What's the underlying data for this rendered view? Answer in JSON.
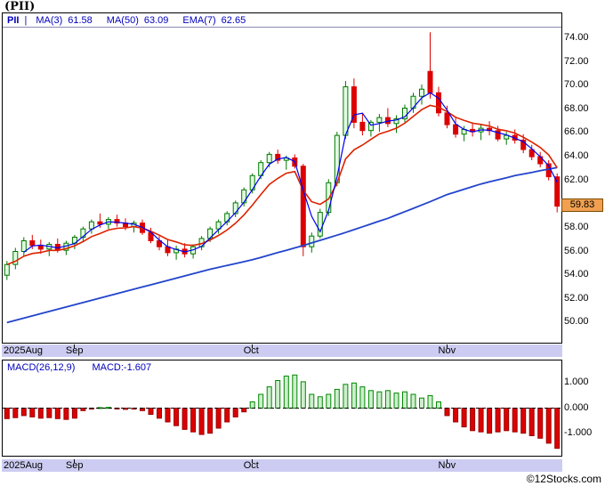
{
  "header": {
    "title": "(PII)"
  },
  "legend": {
    "symbol": "PII",
    "separator": "|",
    "items": [
      {
        "label": "MA(3)",
        "value": "61.58"
      },
      {
        "label": "MA(50)",
        "value": "63.09"
      },
      {
        "label": "EMA(7)",
        "value": "62.65"
      }
    ]
  },
  "macd_legend": {
    "params": "MACD(26,12,9)",
    "value": "MACD:-1.607"
  },
  "footer": {
    "copyright": "©12Stocks.com"
  },
  "colors": {
    "legend_text": "#0000bb",
    "axis_text": "#000000",
    "strip_bg": "#ccccf2",
    "tag_bg": "#f0a050",
    "tag_border": "#7a4a00"
  },
  "chart_data": [
    {
      "type": "candlestick",
      "symbol": "PII",
      "ylim": [
        48.3,
        76.1
      ],
      "y_ticks": [
        "74.00",
        "72.00",
        "70.00",
        "68.00",
        "66.00",
        "64.00",
        "62.00",
        "58.00",
        "56.00",
        "54.00",
        "52.00",
        "50.00"
      ],
      "x_ticks": [
        {
          "label": "2025Aug",
          "index": 0
        },
        {
          "label": "Sep",
          "index": 8
        },
        {
          "label": "Oct",
          "index": 29
        },
        {
          "label": "Nov",
          "index": 52
        }
      ],
      "last_price": 59.83,
      "last_price_label": "59.83",
      "colors": {
        "up": "#007700",
        "up_fill": "#e2ffe2",
        "down": "#dd0000",
        "down_fill": "#dd0000",
        "ma3": "#0000ee",
        "ma50": "#2244cc",
        "ema7": "#dd2200"
      },
      "ma50_points": [
        [
          0,
          50.0
        ],
        [
          8,
          51.5
        ],
        [
          16,
          53.0
        ],
        [
          24,
          54.5
        ],
        [
          29,
          55.3
        ],
        [
          35,
          56.5
        ],
        [
          40,
          57.6
        ],
        [
          45,
          58.8
        ],
        [
          50,
          60.2
        ],
        [
          52,
          60.8
        ],
        [
          56,
          61.7
        ],
        [
          60,
          62.4
        ],
        [
          65,
          63.09
        ]
      ],
      "candles": [
        [
          54.0,
          55.2,
          53.6,
          54.9
        ],
        [
          54.9,
          56.3,
          54.5,
          56.0
        ],
        [
          56.0,
          57.2,
          55.6,
          56.9
        ],
        [
          56.9,
          57.4,
          56.2,
          56.5
        ],
        [
          56.5,
          57.0,
          55.8,
          56.2
        ],
        [
          56.2,
          56.8,
          55.6,
          56.6
        ],
        [
          56.6,
          57.1,
          55.9,
          56.1
        ],
        [
          56.1,
          56.9,
          55.7,
          56.7
        ],
        [
          56.7,
          57.4,
          56.2,
          57.2
        ],
        [
          57.2,
          58.1,
          56.9,
          57.9
        ],
        [
          57.9,
          58.7,
          57.5,
          58.5
        ],
        [
          58.5,
          59.2,
          58.0,
          58.3
        ],
        [
          58.3,
          58.9,
          57.9,
          58.7
        ],
        [
          58.7,
          59.1,
          58.1,
          58.4
        ],
        [
          58.4,
          58.8,
          57.8,
          58.1
        ],
        [
          58.1,
          58.6,
          57.6,
          58.4
        ],
        [
          58.4,
          58.7,
          57.4,
          57.6
        ],
        [
          57.6,
          58.0,
          56.7,
          56.9
        ],
        [
          56.9,
          57.3,
          56.1,
          56.4
        ],
        [
          56.4,
          57.0,
          55.6,
          55.9
        ],
        [
          55.9,
          56.5,
          55.3,
          56.2
        ],
        [
          56.2,
          56.7,
          55.5,
          55.8
        ],
        [
          55.8,
          56.6,
          55.4,
          56.4
        ],
        [
          56.4,
          57.3,
          56.1,
          57.1
        ],
        [
          57.1,
          58.1,
          56.8,
          57.9
        ],
        [
          57.9,
          58.7,
          57.5,
          58.5
        ],
        [
          58.5,
          59.4,
          58.2,
          59.2
        ],
        [
          59.2,
          60.3,
          58.9,
          60.1
        ],
        [
          60.1,
          61.4,
          59.8,
          61.2
        ],
        [
          61.2,
          62.6,
          60.9,
          62.4
        ],
        [
          62.4,
          63.7,
          62.1,
          63.5
        ],
        [
          63.5,
          64.4,
          63.1,
          64.2
        ],
        [
          64.2,
          64.6,
          63.4,
          63.7
        ],
        [
          63.7,
          64.1,
          62.9,
          63.9
        ],
        [
          63.9,
          64.2,
          63.0,
          63.2
        ],
        [
          63.2,
          63.4,
          55.6,
          56.4
        ],
        [
          56.4,
          57.6,
          55.9,
          57.3
        ],
        [
          57.3,
          59.6,
          57.1,
          59.3
        ],
        [
          59.3,
          62.1,
          59.0,
          61.8
        ],
        [
          61.8,
          66.1,
          61.5,
          65.8
        ],
        [
          65.8,
          70.4,
          65.5,
          69.9
        ],
        [
          69.9,
          70.6,
          66.4,
          66.9
        ],
        [
          66.9,
          67.7,
          65.8,
          66.2
        ],
        [
          66.2,
          67.1,
          65.7,
          66.9
        ],
        [
          66.9,
          67.6,
          66.1,
          67.3
        ],
        [
          67.3,
          68.1,
          66.5,
          66.8
        ],
        [
          66.8,
          67.5,
          66.0,
          67.2
        ],
        [
          67.2,
          68.4,
          66.9,
          68.1
        ],
        [
          68.1,
          69.4,
          67.7,
          69.1
        ],
        [
          69.1,
          70.1,
          68.4,
          69.7
        ],
        [
          71.2,
          74.5,
          68.9,
          69.4
        ],
        [
          69.4,
          69.9,
          67.4,
          67.7
        ],
        [
          67.7,
          68.3,
          66.4,
          66.7
        ],
        [
          66.7,
          67.3,
          65.6,
          65.9
        ],
        [
          65.9,
          66.6,
          65.3,
          66.3
        ],
        [
          66.3,
          66.9,
          65.7,
          66.1
        ],
        [
          66.1,
          66.7,
          65.4,
          66.4
        ],
        [
          66.4,
          67.0,
          65.8,
          66.2
        ],
        [
          66.2,
          66.6,
          65.3,
          65.5
        ],
        [
          65.5,
          66.1,
          65.0,
          65.8
        ],
        [
          65.8,
          66.3,
          65.1,
          65.4
        ],
        [
          65.4,
          65.9,
          64.3,
          64.6
        ],
        [
          64.6,
          65.0,
          63.7,
          64.0
        ],
        [
          64.0,
          64.4,
          63.1,
          63.4
        ],
        [
          63.4,
          63.7,
          62.0,
          62.3
        ],
        [
          62.3,
          62.6,
          59.3,
          59.83
        ]
      ]
    },
    {
      "type": "bar",
      "name": "MACD histogram",
      "params": "26,12,9",
      "last_value": -1.607,
      "ylim": [
        -1.9,
        1.9
      ],
      "y_ticks": [
        "1.000",
        "0.000",
        "-1.000"
      ],
      "zero_line": "dashed",
      "colors": {
        "pos_fill": "#cdeecd",
        "pos_stroke": "#008800",
        "neg_fill": "#dd0000",
        "neg_stroke": "#990000"
      },
      "values": [
        -0.42,
        -0.38,
        -0.3,
        -0.35,
        -0.4,
        -0.38,
        -0.42,
        -0.45,
        -0.4,
        -0.1,
        -0.04,
        0.02,
        0.03,
        -0.02,
        -0.05,
        -0.04,
        -0.1,
        -0.25,
        -0.4,
        -0.55,
        -0.7,
        -0.85,
        -0.95,
        -1.05,
        -1.0,
        -0.8,
        -0.55,
        -0.35,
        -0.15,
        0.25,
        0.55,
        0.85,
        1.1,
        1.28,
        1.32,
        1.05,
        0.55,
        0.45,
        0.55,
        0.75,
        0.95,
        1.0,
        0.85,
        0.7,
        0.65,
        0.7,
        0.6,
        0.65,
        0.55,
        0.4,
        0.5,
        0.25,
        -0.3,
        -0.55,
        -0.75,
        -0.9,
        -0.95,
        -1.0,
        -0.95,
        -0.9,
        -0.95,
        -1.0,
        -1.1,
        -1.2,
        -1.4,
        -1.607
      ]
    }
  ]
}
